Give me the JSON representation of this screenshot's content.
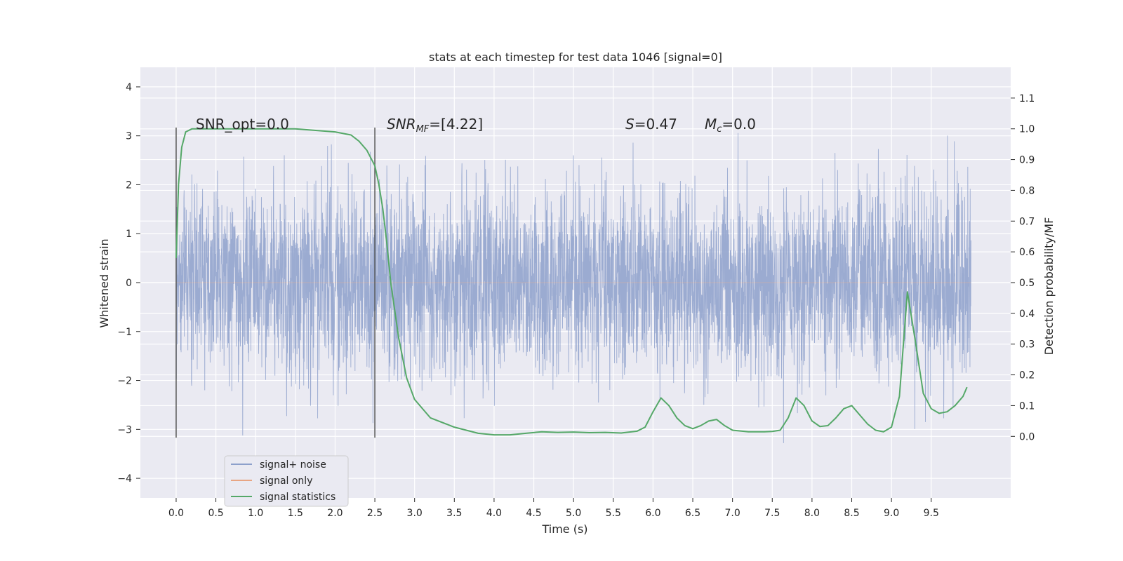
{
  "chart_data": {
    "type": "line",
    "title": "stats at each timestep for test data 1046 [signal=0]",
    "xlabel": "Time (s)",
    "ylabel_left": "Whitened strain",
    "ylabel_right": "Detection probability/MF",
    "xlim": [
      -0.45,
      10.5
    ],
    "ylim_left": [
      -4.4,
      4.4
    ],
    "ylim_right": [
      -0.2,
      1.2
    ],
    "x_ticks": [
      0.0,
      0.5,
      1.0,
      1.5,
      2.0,
      2.5,
      3.0,
      3.5,
      4.0,
      4.5,
      5.0,
      5.5,
      6.0,
      6.5,
      7.0,
      7.5,
      8.0,
      8.5,
      9.0,
      9.5
    ],
    "x_tick_labels": [
      "0.0",
      "0.5",
      "1.0",
      "1.5",
      "2.0",
      "2.5",
      "3.0",
      "3.5",
      "4.0",
      "4.5",
      "5.0",
      "5.5",
      "6.0",
      "6.5",
      "7.0",
      "7.5",
      "8.0",
      "8.5",
      "9.0",
      "9.5"
    ],
    "y_left_ticks": [
      -4,
      -3,
      -2,
      -1,
      0,
      1,
      2,
      3,
      4
    ],
    "y_left_tick_labels": [
      "−4",
      "−3",
      "−2",
      "−1",
      "0",
      "1",
      "2",
      "3",
      "4"
    ],
    "y_right_ticks": [
      0.0,
      0.1,
      0.2,
      0.3,
      0.4,
      0.5,
      0.6,
      0.7,
      0.8,
      0.9,
      1.0,
      1.1
    ],
    "y_right_tick_labels": [
      "0.0",
      "0.1",
      "0.2",
      "0.3",
      "0.4",
      "0.5",
      "0.6",
      "0.7",
      "0.8",
      "0.9",
      "1.0",
      "1.1"
    ],
    "grid": true,
    "legend_position": "lower-left",
    "vertical_markers": [
      {
        "x": 0.0,
        "ymin": -3.17,
        "ymax": 3.17
      },
      {
        "x": 2.5,
        "ymin": -3.17,
        "ymax": 3.17
      }
    ],
    "annotations": {
      "snr_opt": "SNR_opt=0.0",
      "snr_mf_main": "SNR",
      "snr_mf_sub": "MF",
      "snr_mf_value": "=[4.22]",
      "s_main": "S",
      "s_value": "=0.47",
      "mc_main": "M",
      "mc_sub": "c",
      "mc_value": "=0.0"
    },
    "series": [
      {
        "name": "signal+ noise",
        "color": "#8da0cb",
        "axis": "left",
        "kind": "gaussian-noise",
        "x_range": [
          0.0,
          10.0
        ],
        "sigma": 0.95
      },
      {
        "name": "signal only",
        "color": "#e8a583",
        "axis": "left",
        "kind": "flat",
        "x_range": [
          0.0,
          10.0
        ],
        "y": 0
      },
      {
        "name": "signal statistics",
        "color": "#55a868",
        "axis": "right",
        "x": [
          0.0,
          0.03,
          0.07,
          0.12,
          0.2,
          0.5,
          1.0,
          1.5,
          2.0,
          2.2,
          2.3,
          2.4,
          2.5,
          2.55,
          2.6,
          2.65,
          2.7,
          2.8,
          2.9,
          3.0,
          3.2,
          3.5,
          3.8,
          4.0,
          4.2,
          4.4,
          4.6,
          4.8,
          5.0,
          5.2,
          5.4,
          5.6,
          5.8,
          5.9,
          6.0,
          6.1,
          6.2,
          6.3,
          6.4,
          6.5,
          6.6,
          6.7,
          6.8,
          6.9,
          7.0,
          7.2,
          7.4,
          7.5,
          7.6,
          7.7,
          7.8,
          7.9,
          8.0,
          8.1,
          8.2,
          8.3,
          8.4,
          8.5,
          8.6,
          8.7,
          8.8,
          8.9,
          9.0,
          9.1,
          9.2,
          9.3,
          9.4,
          9.5,
          9.6,
          9.7,
          9.8,
          9.9,
          9.95
        ],
        "y": [
          0.58,
          0.82,
          0.94,
          0.99,
          1.0,
          1.0,
          1.0,
          1.0,
          0.99,
          0.98,
          0.96,
          0.93,
          0.88,
          0.82,
          0.74,
          0.63,
          0.5,
          0.32,
          0.19,
          0.12,
          0.06,
          0.03,
          0.01,
          0.005,
          0.005,
          0.01,
          0.015,
          0.013,
          0.014,
          0.012,
          0.013,
          0.011,
          0.017,
          0.03,
          0.08,
          0.125,
          0.1,
          0.06,
          0.035,
          0.025,
          0.035,
          0.05,
          0.055,
          0.035,
          0.02,
          0.015,
          0.015,
          0.016,
          0.02,
          0.06,
          0.125,
          0.1,
          0.05,
          0.032,
          0.035,
          0.06,
          0.09,
          0.1,
          0.07,
          0.04,
          0.02,
          0.015,
          0.03,
          0.13,
          0.47,
          0.31,
          0.14,
          0.09,
          0.075,
          0.08,
          0.1,
          0.13,
          0.16
        ]
      }
    ]
  }
}
